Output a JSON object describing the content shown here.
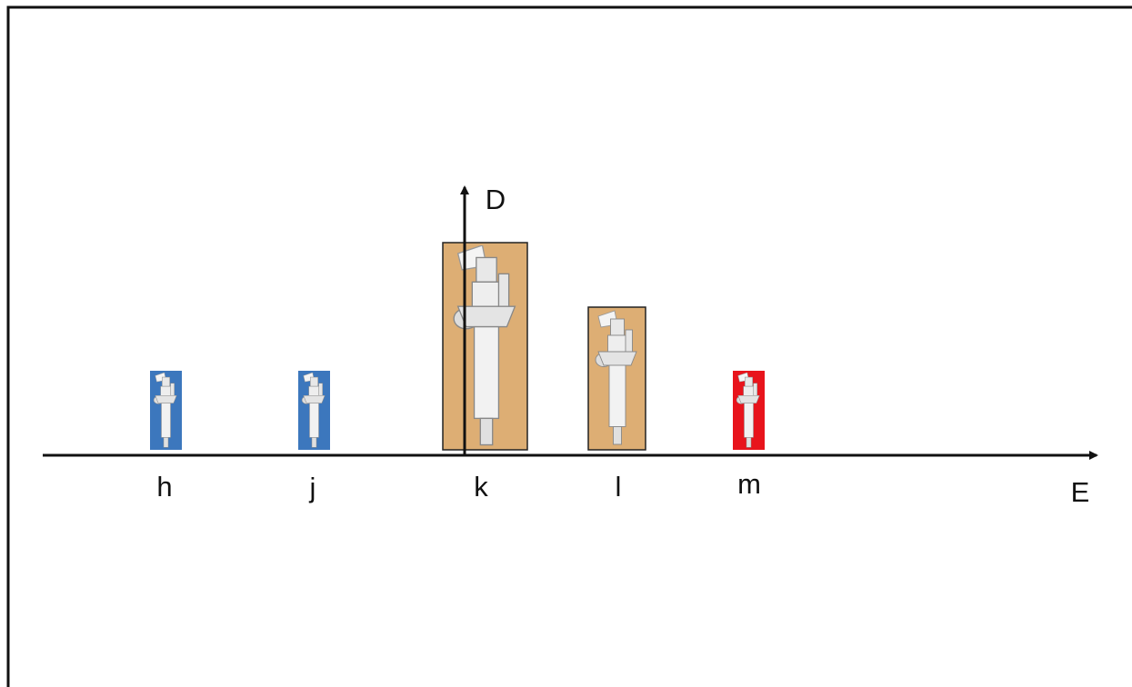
{
  "axes": {
    "vertical": "D",
    "horizontal": "E"
  },
  "items": [
    {
      "label": "h"
    },
    {
      "label": "j"
    },
    {
      "label": "k"
    },
    {
      "label": "l"
    },
    {
      "label": "m"
    }
  ]
}
